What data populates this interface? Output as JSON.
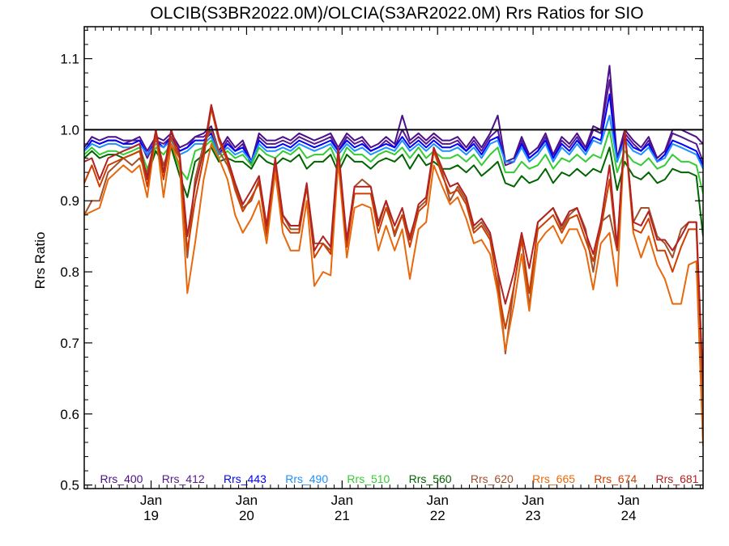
{
  "chart_data": {
    "type": "line",
    "title": "OLCIB(S3BR2022.0M)/OLCIA(S3AR2022.0M)  Rrs Ratios for SIO",
    "ylabel": "Rrs Ratio",
    "xlabel": "",
    "xlim": [
      2018.3,
      2024.78
    ],
    "ylim": [
      0.495,
      1.145
    ],
    "yticks": [
      0.5,
      0.6,
      0.7,
      0.8,
      0.9,
      1.0,
      1.1
    ],
    "ytick_labels": [
      "0.5",
      "0.6",
      "0.7",
      "0.8",
      "0.9",
      "1.0",
      "1.1"
    ],
    "xticks": [
      {
        "x": 2019,
        "month": "Jan",
        "year": "19"
      },
      {
        "x": 2020,
        "month": "Jan",
        "year": "20"
      },
      {
        "x": 2021,
        "month": "Jan",
        "year": "21"
      },
      {
        "x": 2022,
        "month": "Jan",
        "year": "22"
      },
      {
        "x": 2023,
        "month": "Jan",
        "year": "23"
      },
      {
        "x": 2024,
        "month": "Jan",
        "year": "24"
      }
    ],
    "reference_line": 1.0,
    "x": [
      2018.3,
      2018.38,
      2018.46,
      2018.55,
      2018.63,
      2018.71,
      2018.8,
      2018.88,
      2018.96,
      2019.05,
      2019.13,
      2019.21,
      2019.3,
      2019.38,
      2019.46,
      2019.55,
      2019.63,
      2019.71,
      2019.8,
      2019.88,
      2019.96,
      2020.05,
      2020.13,
      2020.21,
      2020.3,
      2020.38,
      2020.46,
      2020.55,
      2020.63,
      2020.71,
      2020.8,
      2020.88,
      2020.96,
      2021.05,
      2021.13,
      2021.21,
      2021.3,
      2021.38,
      2021.46,
      2021.55,
      2021.63,
      2021.71,
      2021.8,
      2021.88,
      2021.96,
      2022.05,
      2022.13,
      2022.21,
      2022.3,
      2022.38,
      2022.46,
      2022.55,
      2022.63,
      2022.71,
      2022.8,
      2022.88,
      2022.96,
      2023.05,
      2023.13,
      2023.21,
      2023.3,
      2023.38,
      2023.46,
      2023.55,
      2023.63,
      2023.71,
      2023.8,
      2023.88,
      2023.96,
      2024.05,
      2024.13,
      2024.21,
      2024.3,
      2024.38,
      2024.46,
      2024.55,
      2024.63,
      2024.71,
      2024.78
    ],
    "series": [
      {
        "name": "Rrs_400",
        "color": "#4b0f8c",
        "values": [
          0.975,
          0.99,
          0.985,
          0.99,
          0.99,
          0.985,
          0.985,
          0.99,
          0.97,
          0.99,
          0.985,
          0.995,
          0.975,
          0.98,
          0.99,
          0.995,
          1.005,
          0.97,
          0.99,
          0.975,
          0.985,
          0.955,
          0.995,
          0.985,
          0.985,
          0.99,
          0.985,
          0.995,
          0.99,
          0.985,
          0.99,
          0.995,
          0.975,
          0.995,
          0.985,
          0.99,
          0.975,
          0.98,
          0.99,
          0.98,
          1.02,
          0.985,
          0.995,
          0.985,
          0.995,
          0.985,
          0.985,
          0.99,
          0.975,
          0.99,
          0.975,
          0.995,
          1.02,
          0.955,
          0.96,
          0.99,
          0.965,
          0.975,
          0.995,
          0.965,
          0.99,
          0.98,
          0.995,
          0.975,
          1.005,
          1.0,
          1.09,
          0.96,
          1.0,
          0.985,
          0.975,
          0.99,
          0.96,
          0.97,
          1.0,
          1.0,
          0.995,
          0.99,
          0.98
        ]
      },
      {
        "name": "Rrs_412",
        "color": "#551a8b",
        "values": [
          0.97,
          0.985,
          0.98,
          0.985,
          0.985,
          0.98,
          0.985,
          0.985,
          0.96,
          0.985,
          0.98,
          0.99,
          0.97,
          0.975,
          0.99,
          0.99,
          1.0,
          0.965,
          0.985,
          0.97,
          0.98,
          0.95,
          0.99,
          0.98,
          0.98,
          0.985,
          0.98,
          0.99,
          0.985,
          0.98,
          0.985,
          0.99,
          0.97,
          0.99,
          0.98,
          0.985,
          0.97,
          0.975,
          0.985,
          0.975,
          1.0,
          0.98,
          0.99,
          0.98,
          0.99,
          0.98,
          0.98,
          0.985,
          0.97,
          0.985,
          0.97,
          0.99,
          1.0,
          0.95,
          0.955,
          0.985,
          0.96,
          0.97,
          0.99,
          0.96,
          0.985,
          0.975,
          0.99,
          0.97,
          1.0,
          0.995,
          1.07,
          0.955,
          0.995,
          0.98,
          0.97,
          0.985,
          0.955,
          0.965,
          0.995,
          0.99,
          0.985,
          0.98,
          0.955
        ]
      },
      {
        "name": "Rrs_443",
        "color": "#0000ff",
        "values": [
          0.97,
          0.985,
          0.98,
          0.985,
          0.985,
          0.98,
          0.98,
          0.985,
          0.965,
          0.985,
          0.975,
          0.99,
          0.97,
          0.975,
          0.985,
          0.985,
          0.995,
          0.965,
          0.98,
          0.97,
          0.975,
          0.955,
          0.985,
          0.975,
          0.975,
          0.98,
          0.975,
          0.985,
          0.98,
          0.975,
          0.98,
          0.985,
          0.97,
          0.985,
          0.975,
          0.98,
          0.97,
          0.975,
          0.98,
          0.975,
          0.99,
          0.975,
          0.985,
          0.975,
          0.985,
          0.975,
          0.975,
          0.98,
          0.97,
          0.98,
          0.965,
          0.985,
          0.99,
          0.955,
          0.955,
          0.98,
          0.96,
          0.97,
          0.985,
          0.96,
          0.98,
          0.97,
          0.985,
          0.97,
          0.99,
          0.985,
          1.05,
          0.955,
          0.99,
          0.975,
          0.97,
          0.98,
          0.955,
          0.965,
          0.985,
          0.98,
          0.975,
          0.97,
          0.95
        ]
      },
      {
        "name": "Rrs_490",
        "color": "#1e90ff",
        "values": [
          0.97,
          0.98,
          0.975,
          0.98,
          0.98,
          0.975,
          0.975,
          0.98,
          0.965,
          0.98,
          0.975,
          0.985,
          0.965,
          0.97,
          0.98,
          0.98,
          0.99,
          0.965,
          0.975,
          0.965,
          0.97,
          0.955,
          0.98,
          0.97,
          0.97,
          0.975,
          0.97,
          0.98,
          0.975,
          0.97,
          0.975,
          0.98,
          0.965,
          0.98,
          0.97,
          0.975,
          0.965,
          0.97,
          0.975,
          0.97,
          0.985,
          0.97,
          0.98,
          0.97,
          0.98,
          0.97,
          0.97,
          0.975,
          0.965,
          0.975,
          0.96,
          0.98,
          0.985,
          0.955,
          0.955,
          0.975,
          0.955,
          0.965,
          0.98,
          0.955,
          0.975,
          0.965,
          0.98,
          0.965,
          0.985,
          0.98,
          1.02,
          0.955,
          0.985,
          0.97,
          0.965,
          0.975,
          0.955,
          0.96,
          0.98,
          0.975,
          0.97,
          0.965,
          0.945
        ]
      },
      {
        "name": "Rrs_510",
        "color": "#33cc33",
        "values": [
          0.965,
          0.975,
          0.965,
          0.97,
          0.97,
          0.965,
          0.97,
          0.975,
          0.945,
          0.975,
          0.965,
          0.98,
          0.945,
          0.93,
          0.97,
          0.975,
          0.985,
          0.96,
          0.97,
          0.96,
          0.965,
          0.95,
          0.975,
          0.965,
          0.96,
          0.97,
          0.965,
          0.975,
          0.96,
          0.965,
          0.965,
          0.975,
          0.95,
          0.975,
          0.965,
          0.965,
          0.955,
          0.965,
          0.97,
          0.965,
          0.975,
          0.96,
          0.975,
          0.96,
          0.97,
          0.96,
          0.96,
          0.965,
          0.955,
          0.965,
          0.95,
          0.965,
          0.975,
          0.94,
          0.94,
          0.955,
          0.945,
          0.95,
          0.965,
          0.945,
          0.96,
          0.955,
          0.965,
          0.955,
          0.965,
          0.96,
          1.0,
          0.94,
          0.97,
          0.955,
          0.95,
          0.96,
          0.945,
          0.95,
          0.965,
          0.955,
          0.955,
          0.95,
          0.91
        ]
      },
      {
        "name": "Rrs_560",
        "color": "#006400",
        "values": [
          0.96,
          0.97,
          0.96,
          0.965,
          0.965,
          0.96,
          0.965,
          0.97,
          0.935,
          0.97,
          0.95,
          0.975,
          0.935,
          0.905,
          0.955,
          0.965,
          0.975,
          0.955,
          0.96,
          0.955,
          0.955,
          0.945,
          0.965,
          0.955,
          0.95,
          0.96,
          0.955,
          0.965,
          0.945,
          0.955,
          0.955,
          0.965,
          0.94,
          0.965,
          0.955,
          0.955,
          0.945,
          0.955,
          0.96,
          0.955,
          0.965,
          0.945,
          0.965,
          0.95,
          0.955,
          0.945,
          0.945,
          0.95,
          0.94,
          0.95,
          0.935,
          0.945,
          0.955,
          0.925,
          0.92,
          0.935,
          0.925,
          0.93,
          0.945,
          0.925,
          0.94,
          0.935,
          0.945,
          0.935,
          0.945,
          0.94,
          0.975,
          0.915,
          0.955,
          0.935,
          0.93,
          0.94,
          0.925,
          0.93,
          0.945,
          0.94,
          0.94,
          0.935,
          0.85
        ]
      },
      {
        "name": "Rrs_620",
        "color": "#a0522d",
        "values": [
          0.88,
          0.9,
          0.9,
          0.94,
          0.95,
          0.96,
          0.95,
          0.96,
          0.94,
          0.99,
          0.95,
          0.98,
          0.96,
          0.82,
          0.93,
          0.98,
          1.0,
          0.97,
          0.95,
          0.92,
          0.89,
          0.9,
          0.93,
          0.85,
          0.95,
          0.88,
          0.86,
          0.86,
          0.92,
          0.84,
          0.84,
          0.83,
          0.97,
          0.84,
          0.92,
          0.93,
          0.92,
          0.87,
          0.9,
          0.85,
          0.88,
          0.85,
          0.89,
          0.9,
          0.97,
          0.94,
          0.9,
          0.92,
          0.9,
          0.86,
          0.87,
          0.85,
          0.8,
          0.685,
          0.78,
          0.85,
          0.75,
          0.87,
          0.88,
          0.89,
          0.86,
          0.88,
          0.89,
          0.86,
          0.8,
          0.87,
          0.88,
          0.83,
          1.0,
          0.87,
          0.89,
          0.89,
          0.85,
          0.84,
          0.82,
          0.86,
          0.87,
          0.87,
          0.6
        ]
      },
      {
        "name": "Rrs_665",
        "color": "#e8680c",
        "values": [
          0.88,
          0.885,
          0.89,
          0.93,
          0.94,
          0.95,
          0.94,
          0.95,
          0.905,
          0.995,
          0.905,
          0.98,
          0.95,
          0.77,
          0.84,
          0.93,
          0.98,
          0.96,
          0.93,
          0.88,
          0.855,
          0.875,
          0.9,
          0.84,
          0.94,
          0.855,
          0.83,
          0.83,
          0.9,
          0.78,
          0.8,
          0.795,
          0.955,
          0.82,
          0.89,
          0.895,
          0.89,
          0.83,
          0.865,
          0.83,
          0.86,
          0.79,
          0.86,
          0.87,
          0.95,
          0.92,
          0.895,
          0.905,
          0.875,
          0.84,
          0.845,
          0.825,
          0.77,
          0.69,
          0.755,
          0.825,
          0.745,
          0.84,
          0.855,
          0.865,
          0.84,
          0.86,
          0.86,
          0.83,
          0.775,
          0.84,
          0.855,
          0.78,
          1.0,
          0.855,
          0.82,
          0.85,
          0.81,
          0.79,
          0.755,
          0.755,
          0.81,
          0.815,
          0.555
        ]
      },
      {
        "name": "Rrs_674",
        "color": "#cd3f00",
        "values": [
          0.925,
          0.95,
          0.92,
          0.95,
          0.955,
          0.96,
          0.965,
          0.97,
          0.92,
          0.995,
          0.93,
          0.99,
          0.96,
          0.83,
          0.9,
          0.96,
          1.03,
          0.985,
          0.955,
          0.915,
          0.885,
          0.905,
          0.925,
          0.855,
          0.955,
          0.87,
          0.855,
          0.855,
          0.92,
          0.82,
          0.84,
          0.825,
          0.97,
          0.835,
          0.91,
          0.91,
          0.91,
          0.855,
          0.89,
          0.855,
          0.88,
          0.835,
          0.885,
          0.895,
          0.97,
          0.935,
          0.91,
          0.915,
          0.895,
          0.855,
          0.865,
          0.845,
          0.78,
          0.72,
          0.78,
          0.845,
          0.77,
          0.86,
          0.87,
          0.88,
          0.855,
          0.875,
          0.88,
          0.845,
          0.815,
          0.86,
          0.93,
          0.83,
          1.0,
          0.86,
          0.855,
          0.875,
          0.83,
          0.83,
          0.8,
          0.835,
          0.86,
          0.86,
          0.64
        ]
      },
      {
        "name": "Rrs_681",
        "color": "#b22222",
        "values": [
          0.955,
          0.96,
          0.93,
          0.96,
          0.965,
          0.97,
          0.975,
          0.98,
          0.93,
          1.0,
          0.94,
          1.0,
          0.965,
          0.85,
          0.92,
          0.97,
          1.035,
          0.99,
          0.96,
          0.925,
          0.895,
          0.915,
          0.935,
          0.865,
          0.96,
          0.88,
          0.865,
          0.865,
          0.925,
          0.83,
          0.85,
          0.835,
          0.975,
          0.845,
          0.92,
          0.92,
          0.92,
          0.865,
          0.9,
          0.865,
          0.89,
          0.845,
          0.895,
          0.905,
          0.975,
          0.945,
          0.92,
          0.925,
          0.905,
          0.865,
          0.875,
          0.855,
          0.8,
          0.755,
          0.8,
          0.855,
          0.805,
          0.87,
          0.88,
          0.89,
          0.865,
          0.885,
          0.89,
          0.855,
          0.825,
          0.87,
          0.95,
          0.835,
          1.0,
          0.87,
          0.865,
          0.885,
          0.845,
          0.845,
          0.83,
          0.85,
          0.87,
          0.87,
          0.64
        ]
      }
    ]
  }
}
